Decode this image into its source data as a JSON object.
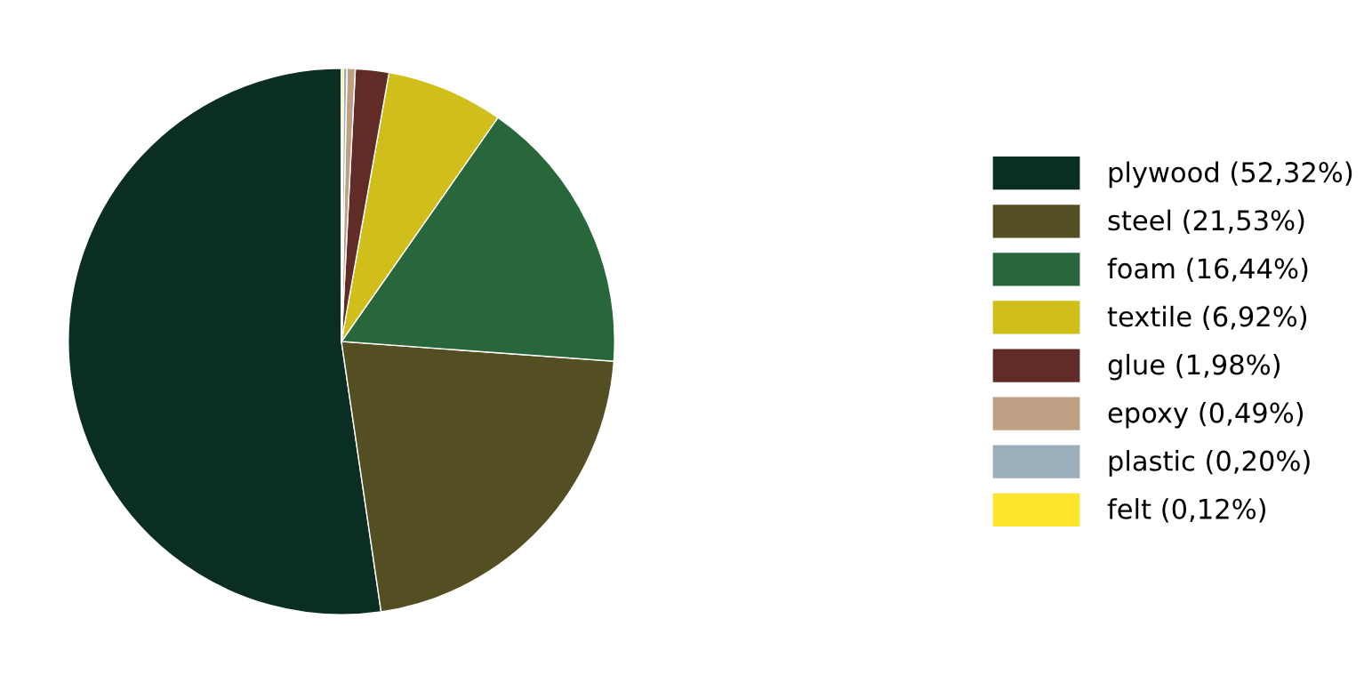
{
  "chart_data": {
    "type": "pie",
    "categories": [
      "plywood (52,32%)",
      "steel (21,53%)",
      "foam (16,44%)",
      "textile (6,92%)",
      "glue (1,98%)",
      "epoxy (0,49%)",
      "plastic (0,20%)",
      "felt (0,12%)"
    ],
    "values": [
      52.32,
      21.53,
      16.44,
      6.92,
      1.98,
      0.49,
      0.2,
      0.12
    ],
    "colors": [
      "#0b2e24",
      "#544f22",
      "#28673c",
      "#d0bf1a",
      "#612b27",
      "#bfa084",
      "#9aafba",
      "#fde52b"
    ],
    "legend": "right"
  }
}
